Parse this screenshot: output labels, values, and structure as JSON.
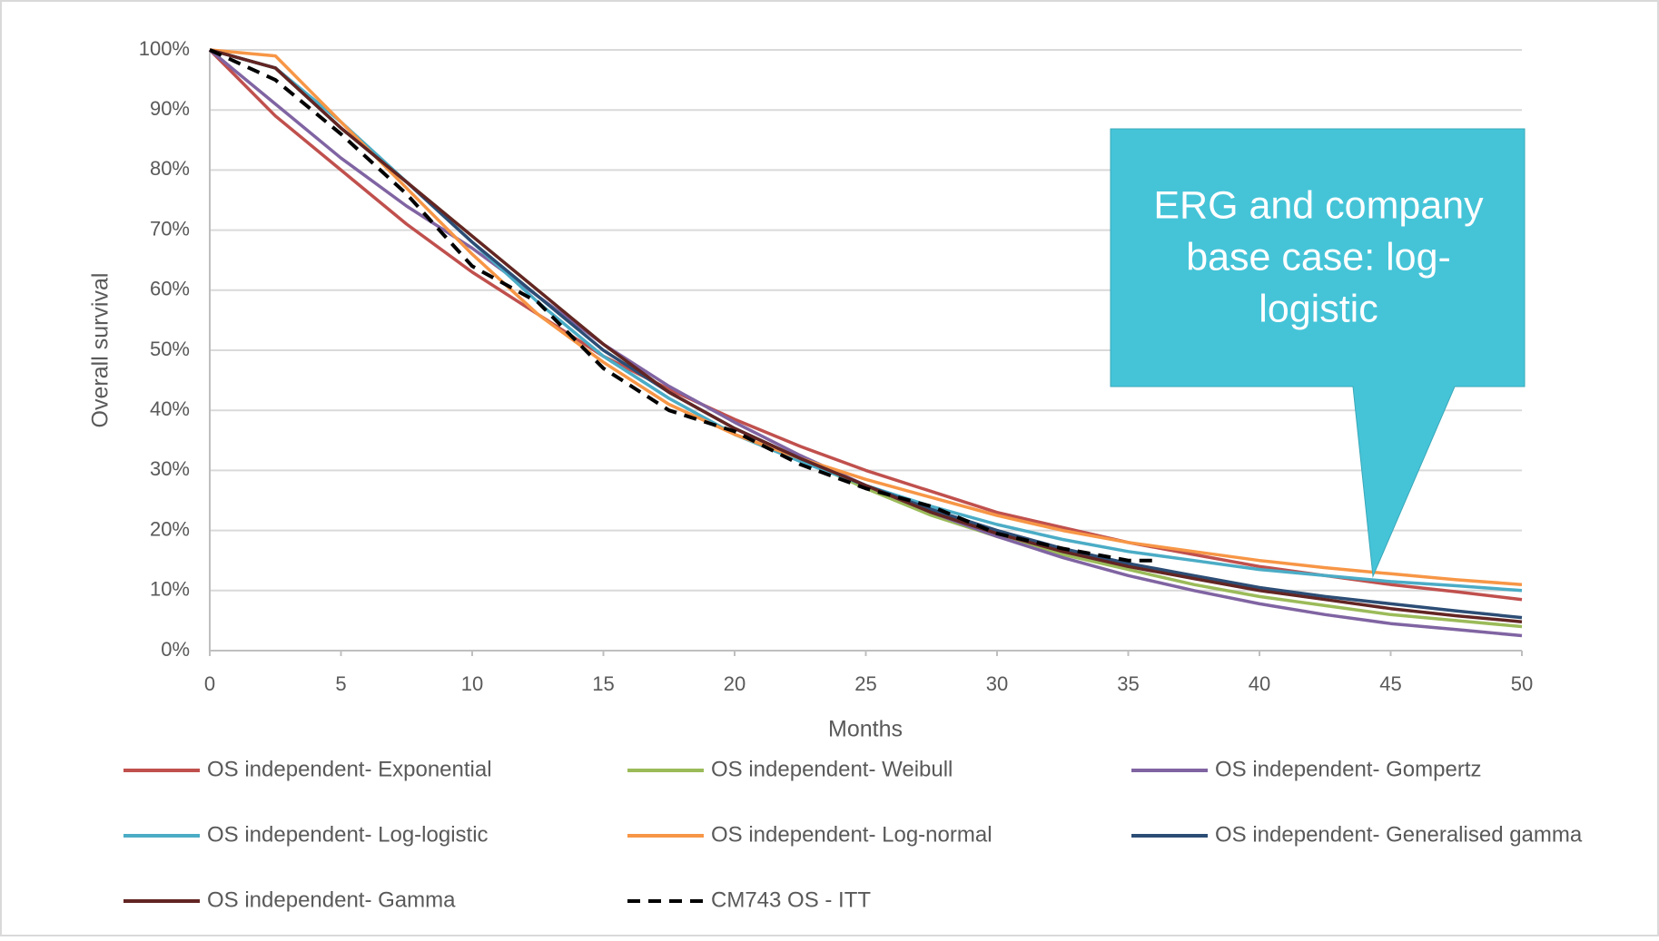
{
  "chart_data": {
    "type": "line",
    "y_label": "Overall survival",
    "x_label": "Months",
    "annotation": [
      "ERG and company",
      "base case: log-",
      "logistic"
    ],
    "xlim": [
      0,
      50
    ],
    "xticks": [
      0,
      5,
      10,
      15,
      20,
      25,
      30,
      35,
      40,
      45,
      50
    ],
    "ylim": [
      0,
      100
    ],
    "yticks": [
      {
        "value": 0,
        "label": "0%"
      },
      {
        "value": 10,
        "label": "10%"
      },
      {
        "value": 20,
        "label": "20%"
      },
      {
        "value": 30,
        "label": "30%"
      },
      {
        "value": 40,
        "label": "40%"
      },
      {
        "value": 50,
        "label": "50%"
      },
      {
        "value": 60,
        "label": "60%"
      },
      {
        "value": 70,
        "label": "70%"
      },
      {
        "value": 80,
        "label": "80%"
      },
      {
        "value": 90,
        "label": "90%"
      },
      {
        "value": 100,
        "label": "100%"
      }
    ],
    "grid": true,
    "x": [
      0,
      2.5,
      5,
      7.5,
      10,
      12.5,
      15,
      17.5,
      20,
      22.5,
      25,
      27.5,
      30,
      32.5,
      35,
      37.5,
      40,
      42.5,
      45,
      47.5,
      50
    ],
    "series": [
      {
        "name": "OS independent- Exponential",
        "color": "#c0504d",
        "values": [
          100,
          89,
          80,
          71,
          63,
          56,
          49,
          43.5,
          38.5,
          34,
          30,
          26.5,
          23,
          20.5,
          18,
          16,
          14,
          12.5,
          11,
          9.8,
          8.5
        ]
      },
      {
        "name": "OS independent- Weibull",
        "color": "#9bbb59",
        "values": [
          100,
          97,
          87,
          78,
          69,
          60,
          51,
          43,
          37,
          32,
          27,
          22.5,
          19,
          16,
          13.5,
          11,
          9,
          7.5,
          6,
          5,
          4
        ]
      },
      {
        "name": "OS independent- Gompertz",
        "color": "#8064a2",
        "values": [
          100,
          91,
          82,
          74,
          67,
          59,
          51,
          44,
          38,
          32.5,
          27.5,
          23,
          19,
          15.5,
          12.5,
          10,
          7.8,
          6,
          4.5,
          3.5,
          2.5
        ]
      },
      {
        "name": "OS independent- Log-logistic",
        "color": "#4bacc6",
        "values": [
          100,
          97,
          88,
          78,
          68,
          58,
          49,
          42,
          36,
          31.5,
          27.5,
          24,
          21,
          18.5,
          16.5,
          15,
          13.5,
          12.5,
          11.5,
          10.8,
          10
        ]
      },
      {
        "name": "OS independent- Log-normal",
        "color": "#f79646",
        "values": [
          100,
          99,
          88,
          77,
          66,
          56,
          48,
          41,
          36,
          32,
          28.5,
          25.5,
          22.5,
          20,
          18,
          16.5,
          15,
          13.8,
          12.8,
          11.8,
          11
        ]
      },
      {
        "name": "OS independent- Generalised gamma",
        "color": "#2c4d75",
        "values": [
          100,
          97,
          87,
          78,
          68,
          59,
          50,
          43,
          37,
          32,
          27.5,
          23.5,
          20,
          17,
          14.5,
          12.5,
          10.5,
          9,
          7.8,
          6.6,
          5.5
        ]
      },
      {
        "name": "OS independent- Gamma",
        "color": "#632523",
        "values": [
          100,
          97,
          87,
          78,
          69,
          60,
          51,
          43,
          37,
          32,
          27.5,
          23,
          19.5,
          16.5,
          14,
          12,
          10,
          8.5,
          7,
          5.8,
          4.8
        ]
      },
      {
        "name": "CM743 OS - ITT",
        "color": "#000000",
        "dashed": true,
        "x": [
          0,
          2.5,
          5,
          7.5,
          10,
          12.5,
          15,
          17.5,
          20,
          22.5,
          25,
          27.5,
          30,
          32.5,
          35,
          36
        ],
        "values": [
          100,
          95,
          86,
          76,
          64,
          58,
          47,
          40,
          36.5,
          31,
          27,
          24,
          19.5,
          17,
          15,
          15
        ]
      }
    ]
  }
}
